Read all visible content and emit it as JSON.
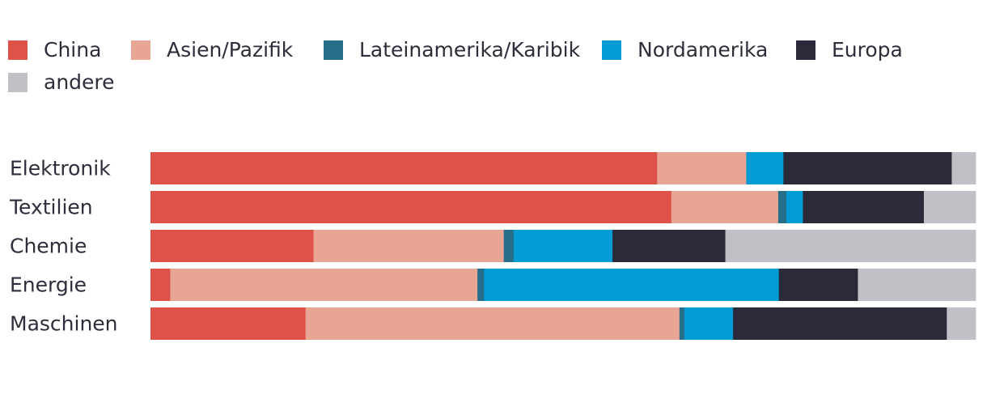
{
  "chart_data": {
    "type": "bar",
    "orientation": "horizontal",
    "stacked": true,
    "normalized": true,
    "title": "",
    "xlabel": "",
    "ylabel": "",
    "xlim": [
      0,
      100
    ],
    "legend_position": "top-left",
    "grid": false,
    "categories": [
      "Elektronik",
      "Textilien",
      "Chemie",
      "Energie",
      "Maschinen"
    ],
    "series": [
      {
        "name": "China",
        "color": "#df5249",
        "values": [
          61.4,
          63.3,
          19.8,
          2.4,
          18.8
        ]
      },
      {
        "name": "Asien/Pazifik",
        "color": "#e8a594",
        "values": [
          10.8,
          13.0,
          23.1,
          37.3,
          45.3
        ]
      },
      {
        "name": "Lateinamerika/Karibik",
        "color": "#256f8a",
        "values": [
          0.0,
          1.0,
          1.2,
          0.8,
          0.6
        ]
      },
      {
        "name": "Nordamerika",
        "color": "#049bd4",
        "values": [
          4.5,
          2.0,
          12.0,
          35.8,
          5.9
        ]
      },
      {
        "name": "Europa",
        "color": "#2a2a3a",
        "values": [
          20.4,
          14.7,
          13.7,
          9.6,
          25.9
        ]
      },
      {
        "name": "andere",
        "color": "#c0c0c6",
        "values": [
          2.9,
          6.3,
          30.4,
          14.3,
          3.5
        ]
      }
    ]
  }
}
